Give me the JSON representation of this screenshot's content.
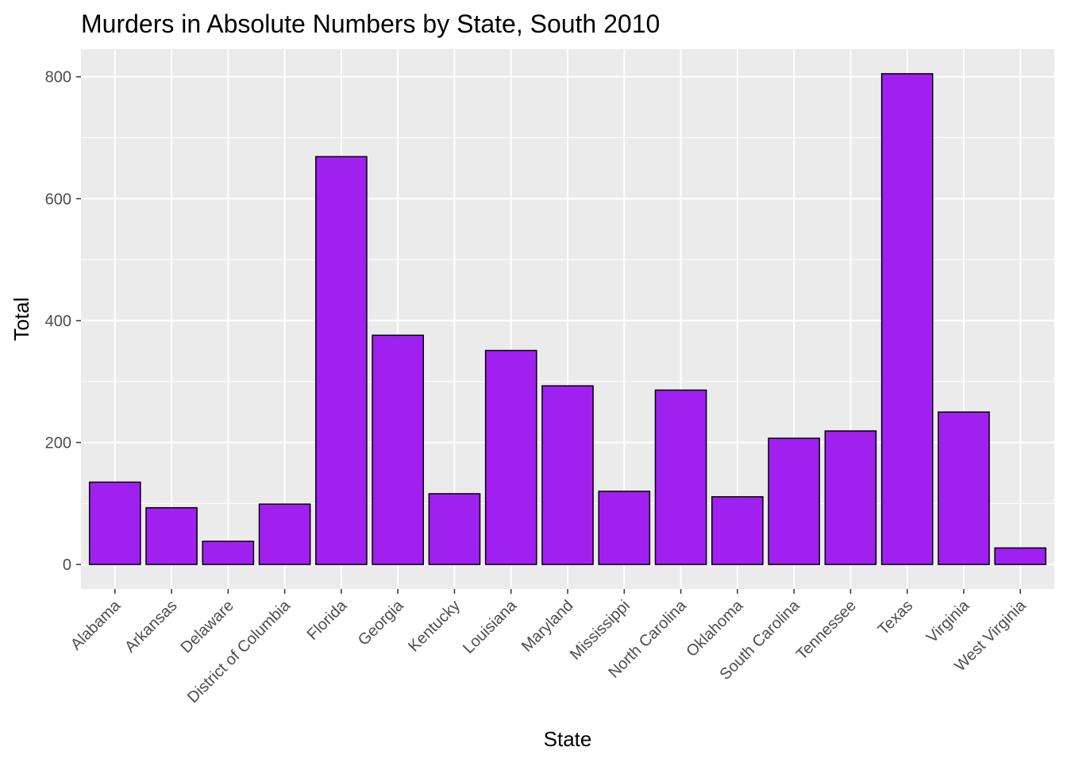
{
  "chart_data": {
    "type": "bar",
    "title": "Murders in Absolute Numbers by State, South 2010",
    "xlabel": "State",
    "ylabel": "Total",
    "categories": [
      "Alabama",
      "Arkansas",
      "Delaware",
      "District of Columbia",
      "Florida",
      "Georgia",
      "Kentucky",
      "Louisiana",
      "Maryland",
      "Mississippi",
      "North Carolina",
      "Oklahoma",
      "South Carolina",
      "Tennessee",
      "Texas",
      "Virginia",
      "West Virginia"
    ],
    "values": [
      135,
      93,
      38,
      99,
      669,
      376,
      116,
      351,
      293,
      120,
      286,
      111,
      207,
      219,
      805,
      250,
      27
    ],
    "yticks": [
      0,
      200,
      400,
      600,
      800
    ],
    "ytick_labels": [
      "0",
      "200",
      "400",
      "600",
      "800"
    ],
    "ylim": [
      -40.25,
      845.25
    ],
    "grid": true,
    "legend": "none",
    "colors": {
      "bar_fill": "#A020F0",
      "bar_stroke": "#000000",
      "panel_bg": "#EBEBEB",
      "grid": "#FFFFFF"
    }
  }
}
